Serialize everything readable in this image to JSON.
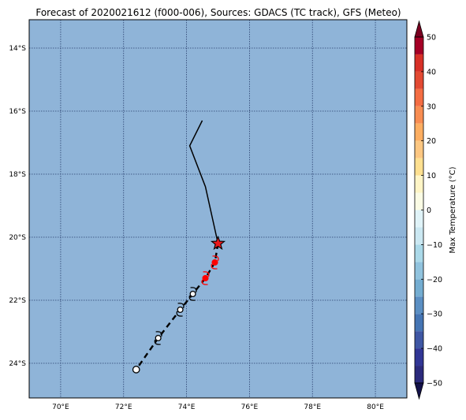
{
  "title": "Forecast of 2020021612 (f000-006), Sources: GDACS (TC track), GFS (Meteo)",
  "map": {
    "ocean_color": "#8fb4d8",
    "grid_color": "#2a3f6e",
    "lon_range": [
      69,
      81
    ],
    "lat_range": [
      -25.1,
      -13.1
    ],
    "lon_ticks": [
      {
        "value": 70,
        "label": "70°E"
      },
      {
        "value": 72,
        "label": "72°E"
      },
      {
        "value": 74,
        "label": "74°E"
      },
      {
        "value": 76,
        "label": "76°E"
      },
      {
        "value": 78,
        "label": "78°E"
      },
      {
        "value": 80,
        "label": "80°E"
      }
    ],
    "lat_ticks": [
      {
        "value": -14,
        "label": "14°S"
      },
      {
        "value": -16,
        "label": "16°S"
      },
      {
        "value": -18,
        "label": "18°S"
      },
      {
        "value": -20,
        "label": "20°S"
      },
      {
        "value": -22,
        "label": "22°S"
      },
      {
        "value": -24,
        "label": "24°S"
      }
    ],
    "past_track": [
      {
        "lon": 74.5,
        "lat": -16.3
      },
      {
        "lon": 74.1,
        "lat": -17.1
      },
      {
        "lon": 74.6,
        "lat": -18.4
      },
      {
        "lon": 75.0,
        "lat": -20.2
      }
    ],
    "current_position": {
      "lon": 75.0,
      "lat": -20.2,
      "color": "#e8191c"
    },
    "forecast_track": [
      {
        "lon": 75.0,
        "lat": -20.2
      },
      {
        "lon": 74.9,
        "lat": -20.8
      },
      {
        "lon": 74.6,
        "lat": -21.3
      },
      {
        "lon": 74.2,
        "lat": -21.8
      },
      {
        "lon": 73.8,
        "lat": -22.3
      },
      {
        "lon": 73.1,
        "lat": -23.2
      },
      {
        "lon": 72.4,
        "lat": -24.2
      }
    ],
    "forecast_points": [
      {
        "lon": 74.9,
        "lat": -20.8,
        "style": "storm-filled",
        "color": "#ff0000"
      },
      {
        "lon": 74.6,
        "lat": -21.3,
        "style": "storm-filled",
        "color": "#ff0000"
      },
      {
        "lon": 74.2,
        "lat": -21.8,
        "style": "storm-open",
        "color": "#000000"
      },
      {
        "lon": 73.8,
        "lat": -22.3,
        "style": "storm-open",
        "color": "#000000"
      },
      {
        "lon": 73.1,
        "lat": -23.2,
        "style": "storm-open",
        "color": "#000000"
      },
      {
        "lon": 72.4,
        "lat": -24.2,
        "style": "open-circle",
        "color": "#000000"
      }
    ]
  },
  "colorbar": {
    "label": "Max Temperature (°C)",
    "min": -50,
    "max": 50,
    "ticks": [
      {
        "value": 50,
        "label": "50"
      },
      {
        "value": 40,
        "label": "40"
      },
      {
        "value": 30,
        "label": "30"
      },
      {
        "value": 20,
        "label": "20"
      },
      {
        "value": 10,
        "label": "10"
      },
      {
        "value": 0,
        "label": "0"
      },
      {
        "value": -10,
        "label": "−10"
      },
      {
        "value": -20,
        "label": "−20"
      },
      {
        "value": -30,
        "label": "−30"
      },
      {
        "value": -40,
        "label": "−40"
      },
      {
        "value": -50,
        "label": "−50"
      }
    ],
    "bands": [
      {
        "from": -50,
        "to": -45,
        "color": "#2b2a7c"
      },
      {
        "from": -45,
        "to": -40,
        "color": "#313695"
      },
      {
        "from": -40,
        "to": -35,
        "color": "#3f57a4"
      },
      {
        "from": -35,
        "to": -30,
        "color": "#4575b4"
      },
      {
        "from": -30,
        "to": -25,
        "color": "#5b8fc3"
      },
      {
        "from": -25,
        "to": -20,
        "color": "#74add1"
      },
      {
        "from": -20,
        "to": -15,
        "color": "#91c3de"
      },
      {
        "from": -15,
        "to": -10,
        "color": "#abd9e9"
      },
      {
        "from": -10,
        "to": -5,
        "color": "#cbe8f2"
      },
      {
        "from": -5,
        "to": 0,
        "color": "#e0f3f8"
      },
      {
        "from": 0,
        "to": 5,
        "color": "#fbfce5"
      },
      {
        "from": 5,
        "to": 10,
        "color": "#fff5c6"
      },
      {
        "from": 10,
        "to": 15,
        "color": "#fee090"
      },
      {
        "from": 15,
        "to": 20,
        "color": "#fdc782"
      },
      {
        "from": 20,
        "to": 25,
        "color": "#fdae61"
      },
      {
        "from": 25,
        "to": 30,
        "color": "#f88d52"
      },
      {
        "from": 30,
        "to": 35,
        "color": "#f46d43"
      },
      {
        "from": 35,
        "to": 40,
        "color": "#e34a33"
      },
      {
        "from": 40,
        "to": 45,
        "color": "#d73027"
      },
      {
        "from": 45,
        "to": 50,
        "color": "#a50026"
      }
    ],
    "extend_low_color": "#14124a",
    "extend_high_color": "#7a0020"
  }
}
